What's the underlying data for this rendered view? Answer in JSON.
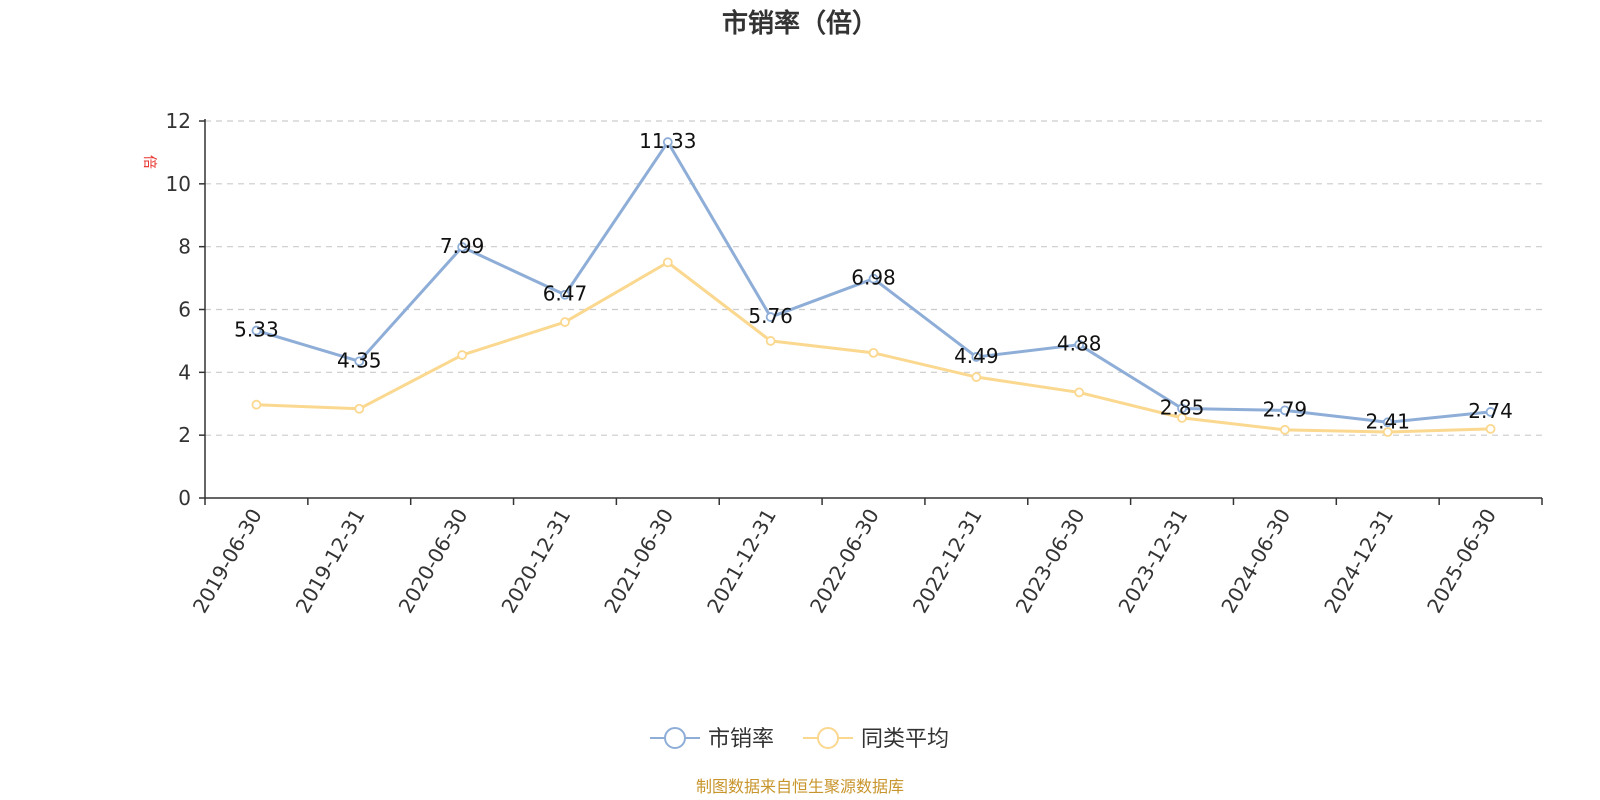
{
  "chart_data": {
    "type": "line",
    "title": "市销率（倍）",
    "ylabel": "倍",
    "xlabel": "",
    "ylim": [
      0,
      12
    ],
    "yticks": [
      0,
      2,
      4,
      6,
      8,
      10,
      12
    ],
    "grid": "horizontal-dashed",
    "legend_position": "bottom",
    "categories": [
      "2019-06-30",
      "2019-12-31",
      "2020-06-30",
      "2020-12-31",
      "2021-06-30",
      "2021-12-31",
      "2022-06-30",
      "2022-12-31",
      "2023-06-30",
      "2023-12-31",
      "2024-06-30",
      "2024-12-31",
      "2025-06-30"
    ],
    "series": [
      {
        "name": "市销率",
        "color": "#8eaed8",
        "values": [
          5.33,
          4.35,
          7.99,
          6.47,
          11.33,
          5.76,
          6.98,
          4.49,
          4.88,
          2.85,
          2.79,
          2.41,
          2.74
        ],
        "labels": [
          "5.33",
          "4.35",
          "7.99",
          "6.47",
          "11.33",
          "5.76",
          "6.98",
          "4.49",
          "4.88",
          "2.85",
          "2.79",
          "2.41",
          "2.74"
        ]
      },
      {
        "name": "同类平均",
        "color": "#fbd88f",
        "values": [
          2.97,
          2.84,
          4.55,
          5.6,
          7.5,
          5.0,
          4.62,
          3.85,
          3.36,
          2.55,
          2.17,
          2.1,
          2.2
        ]
      }
    ]
  },
  "footer": {
    "source": "制图数据来自恒生聚源数据库"
  }
}
